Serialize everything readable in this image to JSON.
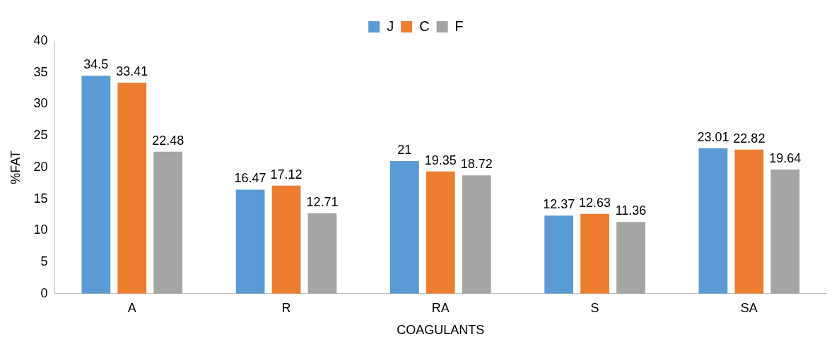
{
  "chart_data": {
    "type": "bar",
    "xlabel": "COAGULANTS",
    "ylabel": "%FAT",
    "categories": [
      "A",
      "R",
      "RA",
      "S",
      "SA"
    ],
    "series": [
      {
        "name": "J",
        "color": "#5b9bd5",
        "values": [
          34.5,
          16.47,
          21,
          12.37,
          23.01
        ]
      },
      {
        "name": "C",
        "color": "#ed7d31",
        "values": [
          33.41,
          17.12,
          19.35,
          12.63,
          22.82
        ]
      },
      {
        "name": "F",
        "color": "#a5a5a5",
        "values": [
          22.48,
          12.71,
          18.72,
          11.36,
          19.64
        ]
      }
    ],
    "ylim": [
      0,
      40
    ],
    "yticks": [
      0,
      5,
      10,
      15,
      20,
      25,
      30,
      35,
      40
    ],
    "grid": false,
    "legend": "top",
    "data_labels": true
  }
}
